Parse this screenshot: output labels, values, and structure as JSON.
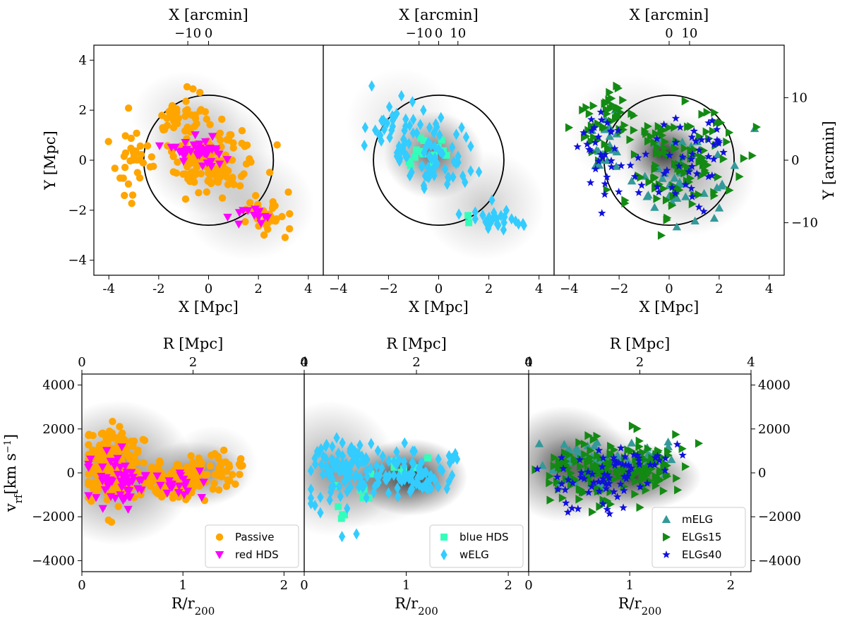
{
  "chart_data": [
    {
      "id": "top-left",
      "type": "scatter",
      "xlabel_bottom": "X  [Mpc]",
      "xlabel_top": "X  [arcmin]",
      "ylabel_left": "Y  [Mpc]",
      "ylabel_right": "",
      "xlim": [
        -4.6,
        4.6
      ],
      "ylim": [
        -4.6,
        4.6
      ],
      "xticks": [
        "-4",
        "-2",
        "0",
        "2",
        "4"
      ],
      "xticks_values": [
        -4,
        -2,
        0,
        2,
        4
      ],
      "xticks_top": [
        "−10",
        "0",
        "10"
      ],
      "xticks_top_values": [
        -10,
        0,
        10
      ],
      "yticks": [
        "−4",
        "−2",
        "0",
        "2",
        "4"
      ],
      "yticks_values": [
        -4,
        -2,
        0,
        2,
        4
      ],
      "circle_radius": 2.6,
      "density_blobs": [
        {
          "x": 0.0,
          "y": 0.2,
          "sx": 1.2,
          "sy": 1.1,
          "a": 0.28
        },
        {
          "x": 1.6,
          "y": -1.8,
          "sx": 1.2,
          "sy": 1.0,
          "a": 0.2
        },
        {
          "x": -0.9,
          "y": 1.8,
          "sx": 1.0,
          "sy": 0.8,
          "a": 0.15
        }
      ],
      "series": [
        {
          "name": "Passive",
          "marker": "circle",
          "color": "#ffa500",
          "cloud": {
            "count": 230,
            "seed": 11,
            "groups": [
              [
                0.0,
                0.1,
                1.5,
                1.2,
                0.55
              ],
              [
                2.2,
                -2.2,
                0.9,
                0.6,
                0.2
              ],
              [
                -1.2,
                1.9,
                1.0,
                0.8,
                0.15
              ],
              [
                -3.0,
                0.0,
                0.6,
                1.4,
                0.1
              ]
            ]
          }
        },
        {
          "name": "red HDS",
          "marker": "triangle-down",
          "color": "#ff00ff",
          "cloud": {
            "count": 55,
            "seed": 12,
            "groups": [
              [
                -0.3,
                0.4,
                0.9,
                0.6,
                0.75
              ],
              [
                2.0,
                -2.0,
                0.9,
                0.5,
                0.25
              ]
            ]
          }
        }
      ]
    },
    {
      "id": "top-middle",
      "type": "scatter",
      "xlabel_bottom": "X  [Mpc]",
      "xlabel_top": "X  [arcmin]",
      "ylabel_left": "",
      "ylabel_right": "",
      "xlim": [
        -4.6,
        4.6
      ],
      "ylim": [
        -4.6,
        4.6
      ],
      "xticks": [
        "−4",
        "−2",
        "0",
        "2",
        "4"
      ],
      "xticks_values": [
        -4,
        -2,
        0,
        2,
        4
      ],
      "xticks_top": [
        "−10",
        "0",
        "10"
      ],
      "xticks_top_values": [
        -10,
        0,
        10
      ],
      "yticks": [],
      "yticks_values": [],
      "circle_radius": 2.6,
      "density_blobs": [
        {
          "x": -0.2,
          "y": 0.2,
          "sx": 0.9,
          "sy": 0.8,
          "a": 0.55
        },
        {
          "x": 1.8,
          "y": -1.8,
          "sx": 1.1,
          "sy": 1.0,
          "a": 0.2
        },
        {
          "x": -1.5,
          "y": 1.5,
          "sx": 1.0,
          "sy": 1.0,
          "a": 0.12
        }
      ],
      "series": [
        {
          "name": "blue HDS",
          "marker": "square",
          "color": "#33ffbb",
          "cloud": {
            "count": 16,
            "seed": 21,
            "groups": [
              [
                -0.5,
                0.3,
                0.8,
                0.8,
                0.8
              ],
              [
                1.2,
                -2.4,
                0.3,
                0.2,
                0.2
              ]
            ]
          }
        },
        {
          "name": "wELG",
          "marker": "diamond",
          "color": "#33ccff",
          "cloud": {
            "count": 125,
            "seed": 22,
            "groups": [
              [
                -0.3,
                0.2,
                1.4,
                1.2,
                0.55
              ],
              [
                2.2,
                -2.4,
                0.9,
                0.5,
                0.25
              ],
              [
                -1.8,
                1.5,
                1.0,
                0.9,
                0.2
              ]
            ]
          }
        }
      ]
    },
    {
      "id": "top-right",
      "type": "scatter",
      "xlabel_bottom": "X  [Mpc]",
      "xlabel_top": "X  [arcmin]",
      "ylabel_left": "",
      "ylabel_right": "Y  [arcmin]",
      "xlim": [
        -4.6,
        4.6
      ],
      "ylim": [
        -4.6,
        4.6
      ],
      "xticks": [
        "−4",
        "−2",
        "0",
        "2",
        "4"
      ],
      "xticks_values": [
        -4,
        -2,
        0,
        2,
        4
      ],
      "xticks_top": [
        "−10",
        "0",
        "10"
      ],
      "xticks_top_values": [
        -10,
        0,
        10
      ],
      "yticks": [],
      "yticks_values": [],
      "yticks_right": [
        "−10",
        "0",
        "10"
      ],
      "yticks_right_values": [
        -10,
        0,
        10
      ],
      "circle_radius": 2.6,
      "density_blobs": [
        {
          "x": -0.2,
          "y": 0.3,
          "sx": 0.7,
          "sy": 0.6,
          "a": 0.75
        },
        {
          "x": 0.8,
          "y": -0.6,
          "sx": 1.2,
          "sy": 1.1,
          "a": 0.3
        },
        {
          "x": -1.5,
          "y": 1.2,
          "sx": 1.2,
          "sy": 1.0,
          "a": 0.15
        }
      ],
      "series": [
        {
          "name": "mELG",
          "marker": "triangle-up",
          "color": "#339999",
          "cloud": {
            "count": 55,
            "seed": 31,
            "groups": [
              [
                0.6,
                -0.8,
                1.6,
                1.6,
                0.7
              ],
              [
                -2.5,
                0.5,
                0.8,
                1.2,
                0.3
              ]
            ]
          }
        },
        {
          "name": "ELGs15",
          "marker": "triangle-right",
          "color": "#138a13",
          "cloud": {
            "count": 160,
            "seed": 32,
            "groups": [
              [
                0.5,
                0.0,
                2.0,
                1.8,
                0.7
              ],
              [
                -2.4,
                1.6,
                0.9,
                1.0,
                0.3
              ]
            ]
          }
        },
        {
          "name": "ELGs40",
          "marker": "star",
          "color": "#1010dd",
          "cloud": {
            "count": 80,
            "seed": 33,
            "groups": [
              [
                0.3,
                -0.3,
                2.0,
                1.7,
                0.75
              ],
              [
                -2.8,
                0.5,
                0.6,
                1.3,
                0.25
              ]
            ]
          }
        }
      ]
    },
    {
      "id": "bottom-left",
      "type": "scatter",
      "xlabel_bottom": "R/r200",
      "xlabel_top": "R  [Mpc]",
      "ylabel_left": "v_rf[km s^-1]",
      "ylabel_right": "",
      "xlim": [
        0,
        2.2
      ],
      "ylim": [
        -4500,
        4500
      ],
      "xticks": [
        "0",
        "1",
        "2"
      ],
      "xticks_values": [
        0,
        1,
        2
      ],
      "xticks_top": [
        "0",
        "2",
        "4"
      ],
      "xticks_top_values": [
        0,
        1.1,
        2.2
      ],
      "yticks": [
        "−4000",
        "−2000",
        "0",
        "2000",
        "4000"
      ],
      "yticks_values": [
        -4000,
        -2000,
        0,
        2000,
        4000
      ],
      "density_blobs": [
        {
          "x": 0.35,
          "y": 0,
          "sx": 0.35,
          "sy": 1500,
          "a": 0.5
        },
        {
          "x": 1.1,
          "y": -100,
          "sx": 0.25,
          "sy": 700,
          "a": 0.4
        },
        {
          "x": 1.3,
          "y": 400,
          "sx": 0.2,
          "sy": 800,
          "a": 0.2
        }
      ],
      "series": [
        {
          "name": "Passive",
          "marker": "circle",
          "color": "#ffa500",
          "cloud": {
            "count": 380,
            "seed": 41,
            "groups": [
              [
                0.3,
                300,
                0.25,
                1400,
                0.55
              ],
              [
                0.9,
                -300,
                0.35,
                800,
                0.35
              ],
              [
                1.4,
                200,
                0.2,
                700,
                0.1
              ]
            ]
          }
        },
        {
          "name": "red HDS",
          "marker": "triangle-down",
          "color": "#ff00ff",
          "cloud": {
            "count": 80,
            "seed": 42,
            "groups": [
              [
                0.35,
                -300,
                0.25,
                1000,
                0.7
              ],
              [
                1.0,
                -400,
                0.3,
                700,
                0.3
              ]
            ]
          }
        }
      ],
      "legend": [
        "Passive",
        "red HDS"
      ]
    },
    {
      "id": "bottom-middle",
      "type": "scatter",
      "xlabel_bottom": "R/r200",
      "xlabel_top": "R  [Mpc]",
      "ylabel_left": "",
      "ylabel_right": "",
      "xlim": [
        0,
        2.2
      ],
      "ylim": [
        -4500,
        4500
      ],
      "xticks": [
        "0",
        "1",
        "2"
      ],
      "xticks_values": [
        0,
        1,
        2
      ],
      "xticks_top": [
        "0",
        "2",
        "4"
      ],
      "xticks_top_values": [
        0,
        1.1,
        2.2
      ],
      "yticks": [],
      "yticks_values": [],
      "density_blobs": [
        {
          "x": 1.05,
          "y": -200,
          "sx": 0.25,
          "sy": 800,
          "a": 0.8
        },
        {
          "x": 0.25,
          "y": 200,
          "sx": 0.3,
          "sy": 1400,
          "a": 0.35
        },
        {
          "x": 0.6,
          "y": -500,
          "sx": 0.3,
          "sy": 900,
          "a": 0.25
        }
      ],
      "series": [
        {
          "name": "blue HDS",
          "marker": "square",
          "color": "#33ffbb",
          "cloud": {
            "count": 16,
            "seed": 51,
            "groups": [
              [
                0.4,
                -1500,
                0.3,
                900,
                0.7
              ],
              [
                1.1,
                400,
                0.25,
                500,
                0.3
              ]
            ]
          }
        },
        {
          "name": "wELG",
          "marker": "diamond",
          "color": "#33ccff",
          "cloud": {
            "count": 170,
            "seed": 52,
            "groups": [
              [
                0.35,
                0,
                0.28,
                1500,
                0.5
              ],
              [
                1.0,
                -100,
                0.35,
                900,
                0.4
              ],
              [
                1.4,
                500,
                0.2,
                700,
                0.1
              ]
            ]
          }
        }
      ],
      "legend": [
        "blue HDS",
        "wELG"
      ]
    },
    {
      "id": "bottom-right",
      "type": "scatter",
      "xlabel_bottom": "R/r200",
      "xlabel_top": "R  [Mpc]",
      "ylabel_left": "",
      "ylabel_right": "",
      "xlim": [
        0,
        2.2
      ],
      "ylim": [
        -4500,
        4500
      ],
      "xticks": [
        "0",
        "1",
        "2"
      ],
      "xticks_values": [
        0,
        1,
        2
      ],
      "xticks_top": [
        "0",
        "2",
        "4"
      ],
      "xticks_top_values": [
        0,
        1.1,
        2.2
      ],
      "yticks": [],
      "yticks_values": [],
      "yticks_right": [
        "−4000",
        "−2000",
        "0",
        "2000",
        "4000"
      ],
      "yticks_right_values": [
        -4000,
        -2000,
        0,
        2000,
        4000
      ],
      "density_blobs": [
        {
          "x": 0.35,
          "y": 400,
          "sx": 0.3,
          "sy": 1200,
          "a": 0.6
        },
        {
          "x": 1.05,
          "y": -200,
          "sx": 0.3,
          "sy": 700,
          "a": 0.7
        },
        {
          "x": 0.7,
          "y": 100,
          "sx": 0.3,
          "sy": 900,
          "a": 0.3
        }
      ],
      "series": [
        {
          "name": "mELG",
          "marker": "triangle-up",
          "color": "#339999",
          "cloud": {
            "count": 60,
            "seed": 61,
            "groups": [
              [
                0.6,
                400,
                0.35,
                1100,
                0.7
              ],
              [
                1.2,
                800,
                0.25,
                900,
                0.3
              ]
            ]
          }
        },
        {
          "name": "ELGs15",
          "marker": "triangle-right",
          "color": "#138a13",
          "cloud": {
            "count": 190,
            "seed": 62,
            "groups": [
              [
                0.6,
                0,
                0.4,
                1300,
                0.6
              ],
              [
                1.2,
                300,
                0.3,
                1000,
                0.4
              ]
            ]
          }
        },
        {
          "name": "ELGs40",
          "marker": "star",
          "color": "#1010dd",
          "cloud": {
            "count": 75,
            "seed": 63,
            "groups": [
              [
                0.7,
                -400,
                0.4,
                1200,
                0.7
              ],
              [
                1.2,
                500,
                0.25,
                900,
                0.3
              ]
            ]
          }
        }
      ],
      "legend": [
        "mELG",
        "ELGs15",
        "ELGs40"
      ]
    }
  ]
}
